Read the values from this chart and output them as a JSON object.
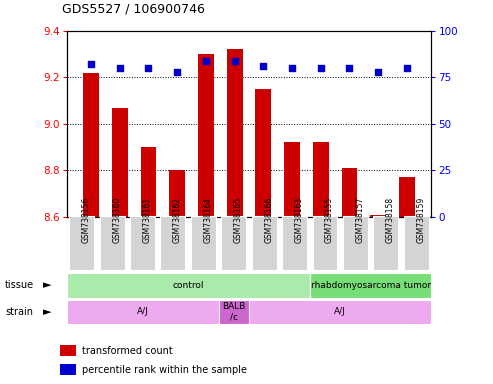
{
  "title": "GDS5527 / 106900746",
  "samples": [
    "GSM738156",
    "GSM738160",
    "GSM738161",
    "GSM738162",
    "GSM738164",
    "GSM738165",
    "GSM738166",
    "GSM738163",
    "GSM738155",
    "GSM738157",
    "GSM738158",
    "GSM738159"
  ],
  "bar_values": [
    9.22,
    9.07,
    8.9,
    8.8,
    9.3,
    9.32,
    9.15,
    8.92,
    8.92,
    8.81,
    8.61,
    8.77
  ],
  "dot_values": [
    82,
    80,
    80,
    78,
    84,
    84,
    81,
    80,
    80,
    80,
    78,
    80
  ],
  "bar_bottom": 8.6,
  "ylim": [
    8.6,
    9.4
  ],
  "y2lim": [
    0,
    100
  ],
  "yticks": [
    8.6,
    8.8,
    9.0,
    9.2,
    9.4
  ],
  "y2ticks": [
    0,
    25,
    50,
    75,
    100
  ],
  "bar_color": "#cc0000",
  "dot_color": "#0000cc",
  "sample_bg_color": "#d4d4d4",
  "tissue_groups": [
    {
      "label": "control",
      "start": 0,
      "end": 8,
      "color": "#aaeaaa"
    },
    {
      "label": "rhabdomyosarcoma tumor",
      "start": 8,
      "end": 12,
      "color": "#77dd77"
    }
  ],
  "strain_groups": [
    {
      "label": "A/J",
      "start": 0,
      "end": 5,
      "color": "#eeaaee"
    },
    {
      "label": "BALB\n/c",
      "start": 5,
      "end": 6,
      "color": "#cc66cc"
    },
    {
      "label": "A/J",
      "start": 6,
      "end": 12,
      "color": "#eeaaee"
    }
  ],
  "legend_items": [
    {
      "color": "#cc0000",
      "label": "transformed count"
    },
    {
      "color": "#0000cc",
      "label": "percentile rank within the sample"
    }
  ],
  "tissue_label": "tissue",
  "strain_label": "strain",
  "grid_yticks": [
    8.8,
    9.0,
    9.2
  ]
}
